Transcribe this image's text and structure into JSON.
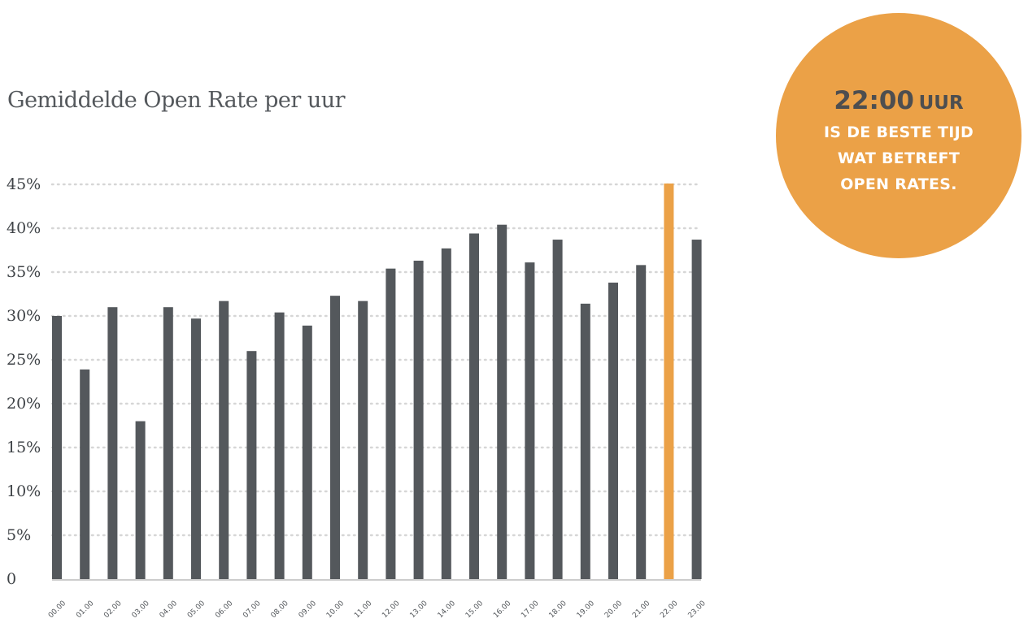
{
  "chart_data": {
    "type": "bar",
    "title": "Gemiddelde Open Rate per uur",
    "categories": [
      "00.00",
      "01.00",
      "02.00",
      "03.00",
      "04.00",
      "05.00",
      "06.00",
      "07.00",
      "08.00",
      "09.00",
      "10.00",
      "11.00",
      "12.00",
      "13.00",
      "14.00",
      "15.00",
      "16.00",
      "17.00",
      "18.00",
      "19.00",
      "20.00",
      "21.00",
      "22.00",
      "23.00"
    ],
    "values": [
      30,
      23.9,
      31,
      18,
      31,
      29.7,
      31.7,
      26,
      30.4,
      28.9,
      32.3,
      31.7,
      35.4,
      36.3,
      37.7,
      39.4,
      40.4,
      36.1,
      38.7,
      31.4,
      33.8,
      35.8,
      45.1,
      38.7
    ],
    "highlight_category": "22.00",
    "ylim": [
      0,
      45
    ],
    "yticks": [
      "0",
      "5%",
      "10%",
      "15%",
      "20%",
      "25%",
      "30%",
      "35%",
      "40%",
      "45%"
    ],
    "ytick_values": [
      0,
      5,
      10,
      15,
      20,
      25,
      30,
      35,
      40,
      45
    ],
    "grid": "horizontal dotted",
    "xlabel": "",
    "ylabel": "",
    "colors": {
      "bar": "#54585c",
      "highlight": "#eba147",
      "grid": "#d6d6d6",
      "axis": "#cccccc"
    }
  },
  "callout": {
    "hour": "22:00",
    "unit": "UUR",
    "lines": [
      "IS DE BESTE TIJD",
      "WAT BETREFT",
      "OPEN RATES."
    ],
    "color": "#eba147"
  }
}
